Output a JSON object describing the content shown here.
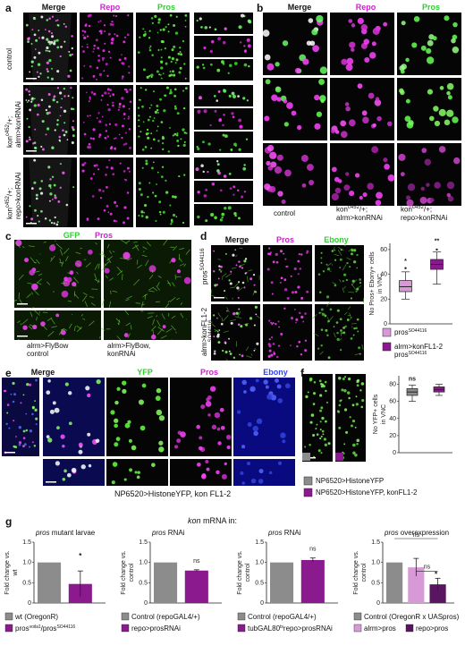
{
  "panels": {
    "a": {
      "label": "a",
      "columns": [
        "Merge",
        "Repo",
        "Pros"
      ],
      "rows": [
        "control",
        "kon",
        "c452",
        "/+;",
        "alrm>konRNAi",
        "kon",
        "c452",
        "/+;",
        "repo>konRNAi"
      ]
    },
    "b": {
      "label": "b",
      "columns": [
        "Merge",
        "Repo",
        "Pros"
      ],
      "captions": [
        {
          "l1": "control",
          "l2": ""
        },
        {
          "l1": "kon",
          "sup": "c452",
          "rest": "/+;",
          "l2": "alrm>konRNAi"
        },
        {
          "l1": "kon",
          "sup": "c452",
          "rest": "/+;",
          "l2": "repo>konRNAi"
        }
      ]
    },
    "c": {
      "label": "c",
      "columns": [
        "GFP",
        "Pros"
      ],
      "captions": [
        {
          "l1": "alrm>FlyBow",
          "l2": "control"
        },
        {
          "l1": "alrm>FlyBow,",
          "l2": "konRNAi"
        }
      ]
    },
    "d": {
      "label": "d",
      "columns": [
        "Merge",
        "Pros",
        "Ebony"
      ],
      "rows": [
        {
          "main": "pros",
          "sup": "SO44116"
        },
        {
          "main": "alrm>konFL1-2",
          "main2": "pros",
          "sup": "SO44116"
        }
      ]
    },
    "e": {
      "label": "e",
      "columns": [
        "Merge",
        "YFP",
        "Pros",
        "Ebony"
      ],
      "caption": "NP6520>HistoneYFP, kon FL1-2"
    },
    "f": {
      "label": "f"
    },
    "g": {
      "label": "g",
      "title_prefix": "kon",
      "title_suffix": " mRNA in:"
    }
  },
  "chart_data": [
    {
      "panel": "d",
      "type": "box",
      "ylabel": "No Pros+ Ebony+ cells in VNC",
      "ylabel_lines": [
        "No Pros+ Ebony+ cells",
        "in VNC"
      ],
      "yticks": [
        0,
        20,
        40,
        60
      ],
      "ylim": [
        0,
        65
      ],
      "boxes": [
        {
          "name": "pros SO44116",
          "min": 20,
          "q1": 26,
          "median": 30,
          "q3": 35,
          "max": 42,
          "outliers": [
            45
          ],
          "color": "#d79ad6"
        },
        {
          "name": "alrm>konFL1-2 pros SO44116",
          "min": 32,
          "q1": 44,
          "median": 48,
          "q3": 52,
          "max": 58,
          "outliers": [
            60
          ],
          "color": "#8a1a8e"
        }
      ],
      "annotations": [
        "*",
        "**"
      ],
      "legend": [
        {
          "color": "#d79ad6",
          "text": "pros",
          "sup": "SO44116"
        },
        {
          "color": "#8a1a8e",
          "text": "alrm>konFL1-2",
          "text2": "pros",
          "sup": "SO44116"
        }
      ]
    },
    {
      "panel": "f",
      "type": "box",
      "ylabel": "No YFP+ cells in VNC",
      "ylabel_lines": [
        "No YFP+ cells",
        "in VNC"
      ],
      "yticks": [
        0,
        20,
        40,
        60,
        80
      ],
      "ylim": [
        0,
        90
      ],
      "boxes": [
        {
          "name": "NP6520>HistoneYFP",
          "min": 60,
          "q1": 67,
          "median": 71,
          "q3": 75,
          "max": 79,
          "outliers": [],
          "color": "#8c8c8c"
        },
        {
          "name": "NP6520>HistoneYFP, konFL1-2",
          "min": 67,
          "q1": 71,
          "median": 74,
          "q3": 77,
          "max": 80,
          "outliers": [],
          "color": "#8a1a8e"
        }
      ],
      "annotations": [
        "ns"
      ],
      "legend": [
        {
          "color": "#8c8c8c",
          "text": "NP6520>HistoneYFP"
        },
        {
          "color": "#8a1a8e",
          "text": "NP6520>HistoneYFP, konFL1-2"
        }
      ]
    },
    {
      "panel": "g1",
      "type": "bar",
      "title_italic": "pros",
      "title_rest": " mutant larvae",
      "ylabel_lines": [
        "Fold change vs.",
        "wt"
      ],
      "yticks": [
        "0",
        "0.5",
        "1.0",
        "1.5"
      ],
      "ylim": [
        0,
        1.5
      ],
      "categories": [
        "wt (OregonR)",
        "pros voila1 / pros SO44116"
      ],
      "values": [
        1.0,
        0.47
      ],
      "errors": [
        0,
        0.32
      ],
      "colors": [
        "#8c8c8c",
        "#8a1a8e"
      ],
      "annotations": [
        "*"
      ],
      "legend": [
        {
          "color": "#8c8c8c",
          "text": "wt (OregonR)"
        },
        {
          "color": "#8a1a8e",
          "text": "pros",
          "sup": "voila1",
          "mid": "/pros",
          "sup2": "SO44116"
        }
      ]
    },
    {
      "panel": "g2",
      "type": "bar",
      "title_italic": "pros",
      "title_rest": " RNAi",
      "ylabel_lines": [
        "Fold change vs.",
        "control"
      ],
      "yticks": [
        "0",
        "0.5",
        "1.0",
        "1.5"
      ],
      "ylim": [
        0,
        1.5
      ],
      "categories": [
        "Control (repoGAL4/+)",
        "repo>prosRNAi"
      ],
      "values": [
        1.0,
        0.8
      ],
      "errors": [
        0,
        0.02
      ],
      "colors": [
        "#8c8c8c",
        "#8a1a8e"
      ],
      "annotations": [
        "ns"
      ],
      "legend": [
        {
          "color": "#8c8c8c",
          "text": "Control (repoGAL4/+)"
        },
        {
          "color": "#8a1a8e",
          "text": "repo>prosRNAi"
        }
      ]
    },
    {
      "panel": "g3",
      "type": "bar",
      "title_italic": "pros",
      "title_rest": " RNAi",
      "ylabel_lines": [
        "Fold change vs.",
        "control"
      ],
      "yticks": [
        "0",
        "0.5",
        "1.0",
        "1.5"
      ],
      "ylim": [
        0,
        1.5
      ],
      "categories": [
        "Control (repoGAL4/+)",
        "tubGAL80ts repo>prosRNAi"
      ],
      "values": [
        1.0,
        1.06
      ],
      "errors": [
        0,
        0.05
      ],
      "colors": [
        "#8c8c8c",
        "#8a1a8e"
      ],
      "annotations": [
        "ns"
      ],
      "legend": [
        {
          "color": "#8c8c8c",
          "text": "Control (repoGAL4/+)"
        },
        {
          "color": "#8a1a8e",
          "text": "tubGAL80",
          "sup": "ts",
          "mid": "repo>prosRNAi"
        }
      ]
    },
    {
      "panel": "g4",
      "type": "bar",
      "title_italic": "pros",
      "title_rest": " overexpression",
      "ylabel_lines": [
        "Fold change vs.",
        "control"
      ],
      "yticks": [
        "0",
        "0.5",
        "1.0",
        "1.5"
      ],
      "ylim": [
        0,
        1.5
      ],
      "categories": [
        "Control (OregonR x UASpros)",
        "alrm>pros",
        "repo>pros"
      ],
      "values": [
        1.0,
        0.88,
        0.46
      ],
      "errors": [
        0,
        0.22,
        0.15
      ],
      "colors": [
        "#8c8c8c",
        "#d79ad6",
        "#5a1560"
      ],
      "annotations": [
        "ns",
        "ns",
        "*"
      ],
      "legend": [
        {
          "color": "#8c8c8c",
          "text": "Control (OregonR x UASpros)"
        },
        {
          "color": "#d79ad6",
          "text": "alrm>pros"
        },
        {
          "color": "#5a1560",
          "text": "repo>pros"
        }
      ]
    }
  ]
}
